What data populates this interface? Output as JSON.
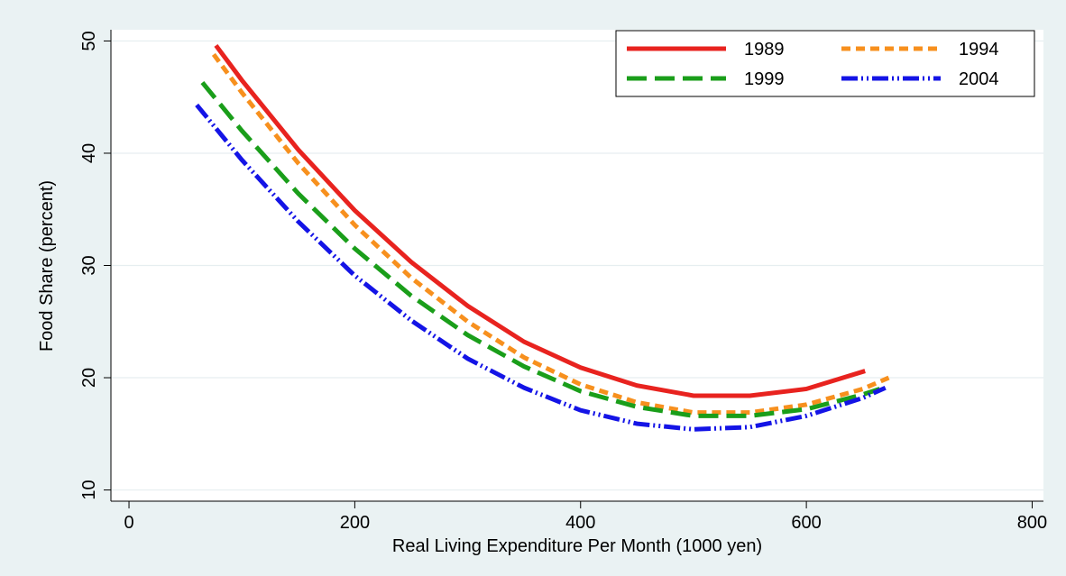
{
  "chart_data": {
    "type": "line",
    "x_label": "Real Living Expenditure Per Month (1000 yen)",
    "y_label": "Food Share (percent)",
    "xlim": [
      -16,
      810
    ],
    "ylim": [
      9,
      51
    ],
    "xticks": [
      0,
      200,
      400,
      600,
      800
    ],
    "yticks": [
      10,
      20,
      30,
      40,
      50
    ],
    "grid": true,
    "legend": "top right",
    "series": [
      {
        "name": "1989",
        "color": "#e8231f",
        "dash": "solid",
        "x": [
          77,
          100,
          150,
          200,
          250,
          300,
          350,
          400,
          450,
          500,
          550,
          600,
          652
        ],
        "values": [
          49.6,
          46.5,
          40.3,
          34.9,
          30.3,
          26.4,
          23.2,
          20.9,
          19.3,
          18.4,
          18.4,
          19.0,
          20.6
        ]
      },
      {
        "name": "1994",
        "color": "#f7901e",
        "dash": "short",
        "x": [
          75,
          100,
          150,
          200,
          250,
          300,
          350,
          400,
          450,
          500,
          550,
          600,
          650,
          673
        ],
        "values": [
          48.8,
          45.4,
          39.1,
          33.6,
          28.9,
          25.0,
          21.8,
          19.4,
          17.8,
          16.9,
          16.9,
          17.6,
          19.0,
          20.0
        ]
      },
      {
        "name": "1999",
        "color": "#1a9e1a",
        "dash": "long",
        "x": [
          65,
          100,
          150,
          200,
          250,
          300,
          350,
          400,
          450,
          500,
          550,
          600,
          650,
          665
        ],
        "values": [
          46.3,
          42.0,
          36.4,
          31.5,
          27.3,
          23.8,
          21.0,
          18.8,
          17.4,
          16.6,
          16.6,
          17.2,
          18.5,
          19.0
        ]
      },
      {
        "name": "2004",
        "color": "#1414e6",
        "dash": "dashdot",
        "x": [
          60,
          100,
          150,
          200,
          250,
          300,
          350,
          400,
          450,
          500,
          550,
          600,
          650,
          670
        ],
        "values": [
          44.3,
          39.4,
          33.9,
          29.1,
          25.1,
          21.7,
          19.1,
          17.1,
          15.9,
          15.4,
          15.6,
          16.6,
          18.2,
          19.1
        ]
      }
    ]
  }
}
